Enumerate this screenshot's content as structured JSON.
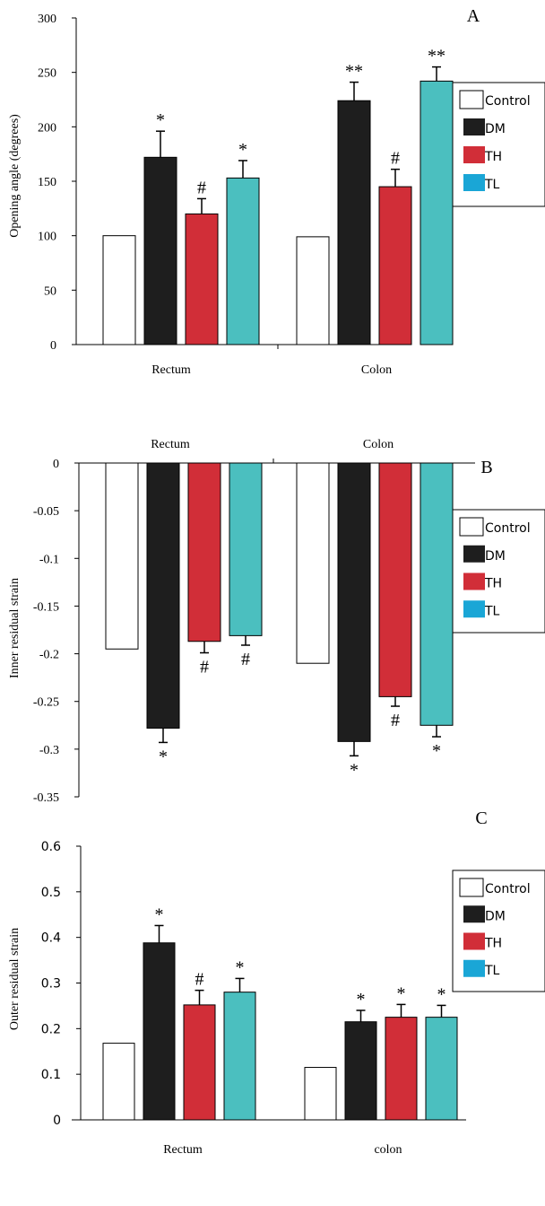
{
  "colors": {
    "Control": "#ffffff",
    "DM": "#1e1e1e",
    "TH": "#d12e38",
    "TL": "#4bbfbf",
    "legend_TL": "#1aa6d6"
  },
  "legend": [
    "Control",
    "DM",
    "TH",
    "TL"
  ],
  "chart_data": [
    {
      "type": "bar",
      "panel": "A",
      "categories": [
        "Rectum",
        "Colon"
      ],
      "series": [
        {
          "name": "Control",
          "values": [
            100,
            99
          ],
          "errors": [
            0,
            0
          ],
          "annotations": [
            "",
            ""
          ]
        },
        {
          "name": "DM",
          "values": [
            172,
            224
          ],
          "errors": [
            24,
            17
          ],
          "annotations": [
            "*",
            "**"
          ]
        },
        {
          "name": "TH",
          "values": [
            120,
            145
          ],
          "errors": [
            14,
            16
          ],
          "annotations": [
            "#",
            "#"
          ]
        },
        {
          "name": "TL",
          "values": [
            153,
            242
          ],
          "errors": [
            16,
            13
          ],
          "annotations": [
            "*",
            "**"
          ]
        }
      ],
      "ylabel": "Opening angle (degrees)",
      "ylim": [
        0,
        300
      ],
      "yticks": [
        0,
        50,
        100,
        150,
        200,
        250,
        300
      ],
      "ytick_labels": [
        "0",
        "50",
        "100",
        "150",
        "200",
        "250",
        "300"
      ],
      "category_position": "bottom",
      "legend_position": "right"
    },
    {
      "type": "bar",
      "panel": "B",
      "categories": [
        "Rectum",
        "Colon"
      ],
      "series": [
        {
          "name": "Control",
          "values": [
            -0.195,
            -0.21
          ],
          "errors": [
            0,
            0
          ],
          "annotations": [
            "",
            ""
          ]
        },
        {
          "name": "DM",
          "values": [
            -0.278,
            -0.292
          ],
          "errors": [
            0.015,
            0.015
          ],
          "annotations": [
            "*",
            "*"
          ]
        },
        {
          "name": "TH",
          "values": [
            -0.187,
            -0.245
          ],
          "errors": [
            0.012,
            0.01
          ],
          "annotations": [
            "#",
            "#"
          ]
        },
        {
          "name": "TL",
          "values": [
            -0.181,
            -0.275
          ],
          "errors": [
            0.01,
            0.012
          ],
          "annotations": [
            "#",
            "*"
          ]
        }
      ],
      "ylabel": "Inner residual strain",
      "ylim": [
        -0.35,
        0
      ],
      "yticks": [
        0,
        -0.05,
        -0.1,
        -0.15,
        -0.2,
        -0.25,
        -0.3,
        -0.35
      ],
      "ytick_labels": [
        "0",
        "-0.05",
        "-0.1",
        "-0.15",
        "-0.2",
        "-0.25",
        "-0.3",
        "-0.35"
      ],
      "category_position": "top",
      "legend_position": "right"
    },
    {
      "type": "bar",
      "panel": "C",
      "categories": [
        "Rectum",
        "colon"
      ],
      "series": [
        {
          "name": "Control",
          "values": [
            0.168,
            0.115
          ],
          "errors": [
            0,
            0
          ],
          "annotations": [
            "",
            ""
          ]
        },
        {
          "name": "DM",
          "values": [
            0.388,
            0.215
          ],
          "errors": [
            0.038,
            0.025
          ],
          "annotations": [
            "*",
            "*"
          ]
        },
        {
          "name": "TH",
          "values": [
            0.252,
            0.225
          ],
          "errors": [
            0.032,
            0.028
          ],
          "annotations": [
            "#",
            "*"
          ]
        },
        {
          "name": "TL",
          "values": [
            0.28,
            0.225
          ],
          "errors": [
            0.03,
            0.026
          ],
          "annotations": [
            "*",
            "*"
          ]
        }
      ],
      "ylabel": "Outer residual strain",
      "ylim": [
        0,
        0.6
      ],
      "yticks": [
        0,
        0.1,
        0.2,
        0.3,
        0.4,
        0.5,
        0.6
      ],
      "ytick_labels": [
        "0",
        "0.1",
        "0.2",
        "0.3",
        "0.4",
        "0.5",
        "0.6"
      ],
      "category_position": "bottom",
      "legend_position": "right"
    }
  ]
}
